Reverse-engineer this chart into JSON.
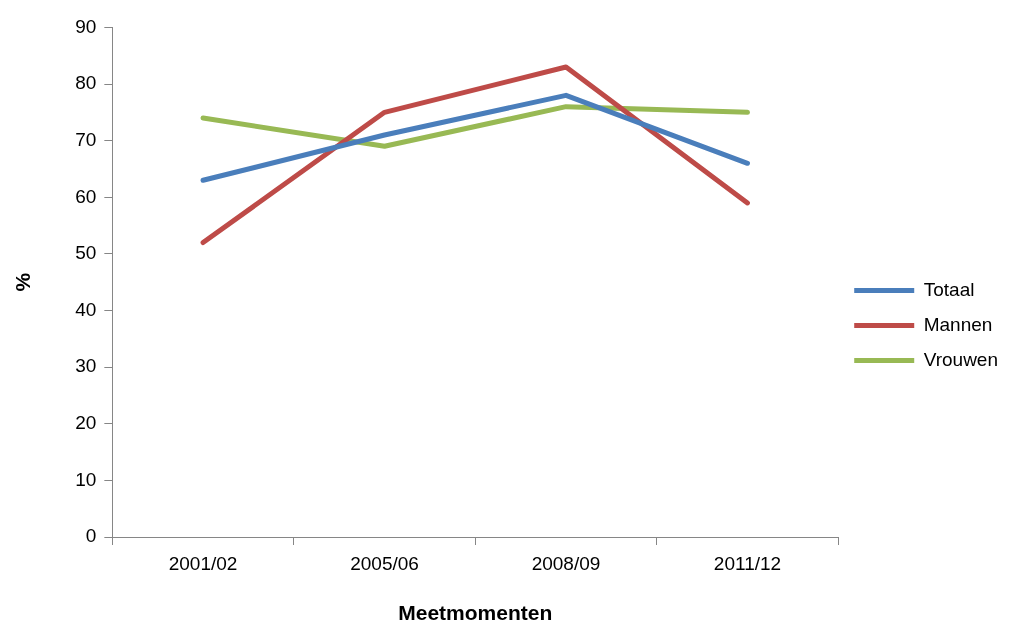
{
  "chart_data": {
    "type": "line",
    "xlabel": "Meetmomenten",
    "ylabel": "%",
    "categories": [
      "2001/02",
      "2005/06",
      "2008/09",
      "2011/12"
    ],
    "series": [
      {
        "name": "Totaal",
        "color": "#4a7ebb",
        "values": [
          63,
          71,
          78,
          66
        ]
      },
      {
        "name": "Mannen",
        "color": "#be4b48",
        "values": [
          52,
          75,
          83,
          59
        ]
      },
      {
        "name": "Vrouwen",
        "color": "#98b954",
        "values": [
          74,
          69,
          76,
          75
        ]
      }
    ],
    "ylim": [
      0,
      90
    ],
    "yticks": [
      0,
      10,
      20,
      30,
      40,
      50,
      60,
      70,
      80,
      90
    ],
    "grid": false,
    "legend": "right",
    "marker": "none",
    "line_style": "solid"
  }
}
